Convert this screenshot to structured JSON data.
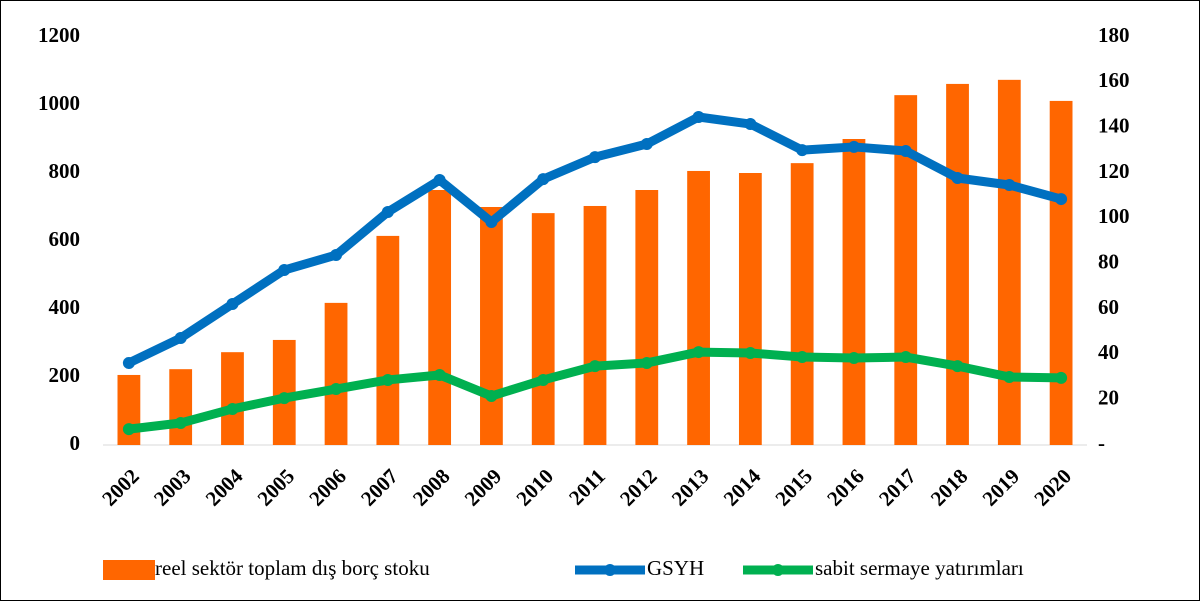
{
  "chart_data": {
    "type": "bar_line",
    "categories": [
      "2002",
      "2003",
      "2004",
      "2005",
      "2006",
      "2007",
      "2008",
      "2009",
      "2010",
      "2011",
      "2012",
      "2013",
      "2014",
      "2015",
      "2016",
      "2017",
      "2018",
      "2019",
      "2020"
    ],
    "series": [
      {
        "name": "reel sektör toplam dış borç stoku",
        "type": "bar",
        "color": "#ff6600",
        "values": [
          206,
          223,
          273,
          309,
          418,
          615,
          750,
          700,
          682,
          703,
          750,
          806,
          800,
          829,
          900,
          1029,
          1062,
          1074,
          1012
        ]
      },
      {
        "name": "GSYH",
        "type": "line",
        "axis": "y2",
        "color": "#0070c0",
        "values": [
          36.2,
          47.2,
          62.2,
          77.2,
          83.8,
          102.8,
          116.9,
          98.4,
          117.3,
          127,
          132.8,
          144.7,
          141.6,
          130.1,
          131.5,
          129.7,
          117.8,
          114.7,
          108.5
        ]
      },
      {
        "name": "sabit sermaye yatırımları",
        "type": "line",
        "axis": "y2",
        "color": "#00b050",
        "values": [
          7,
          9.7,
          15.9,
          20.7,
          24.7,
          28.7,
          30.9,
          21.6,
          28.7,
          34.8,
          36.2,
          41,
          40.6,
          38.8,
          38.4,
          38.8,
          34.8,
          30,
          29.6
        ]
      }
    ],
    "ylim": [
      0,
      1200
    ],
    "yticks": [
      0,
      200,
      400,
      600,
      800,
      1000,
      1200
    ],
    "y2lim": [
      0,
      180
    ],
    "y2ticks": [
      {
        "value": 0,
        "label": "-"
      },
      20,
      40,
      60,
      80,
      100,
      120,
      140,
      160,
      180
    ],
    "legend": "bottom"
  }
}
